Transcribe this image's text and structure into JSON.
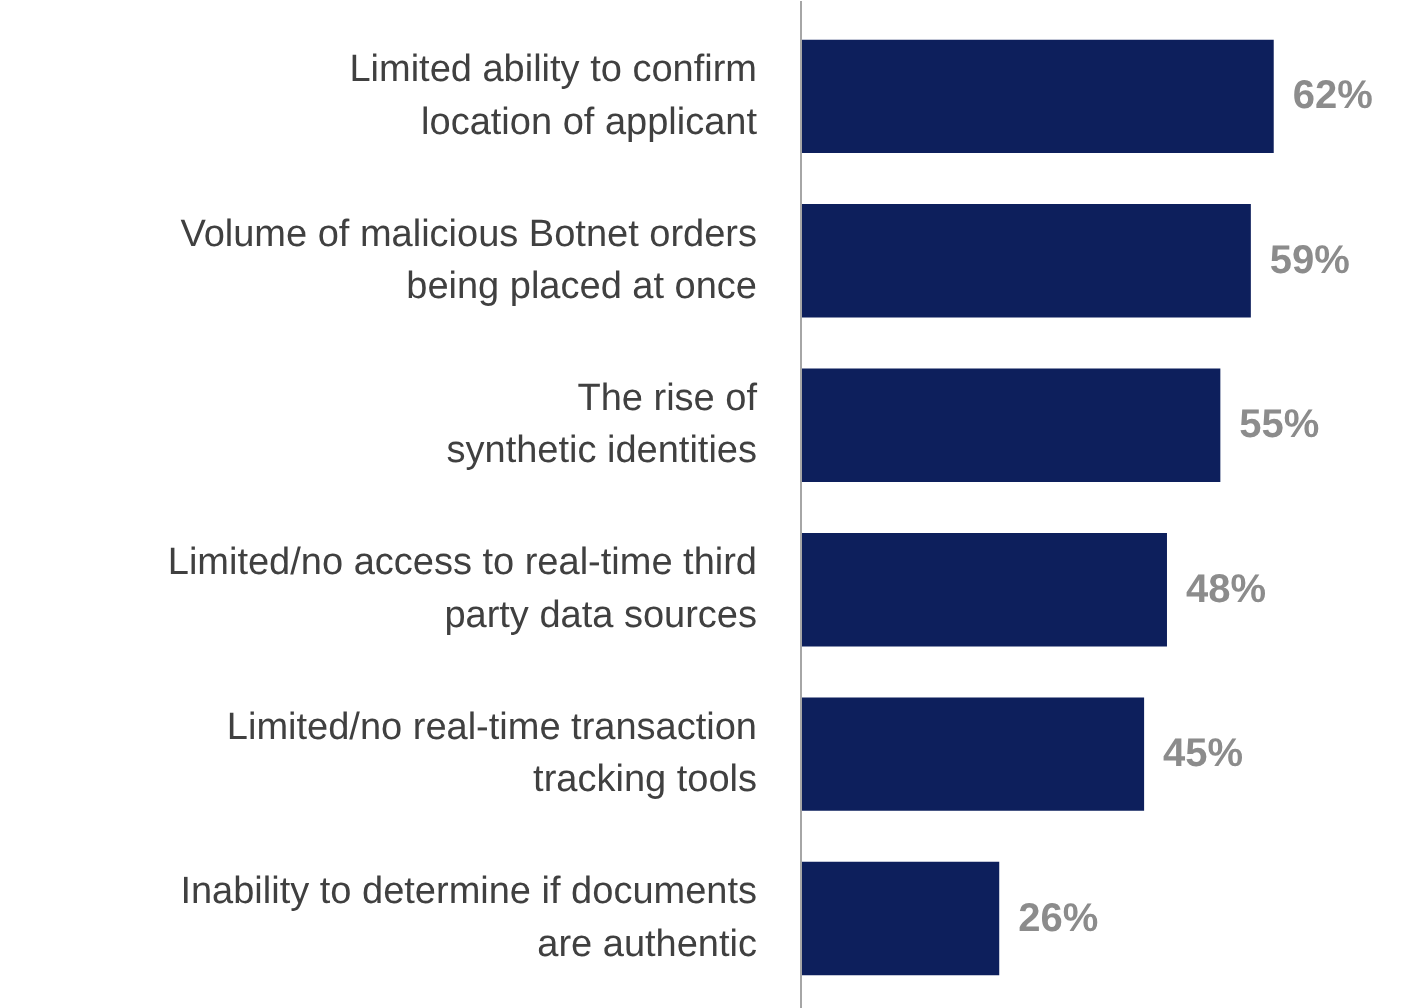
{
  "chart_data": {
    "type": "bar",
    "orientation": "horizontal",
    "categories": [
      "Limited ability to confirm\nlocation of applicant",
      "Volume of malicious Botnet orders\nbeing placed at once",
      "The rise of\nsynthetic identities",
      "Limited/no access to real-time third\nparty data sources",
      "Limited/no real-time transaction\ntracking tools",
      "Inability to determine if documents\nare authentic"
    ],
    "values": [
      62,
      59,
      55,
      48,
      45,
      26
    ],
    "value_labels": [
      "62%",
      "59%",
      "55%",
      "48%",
      "45%",
      "26%"
    ],
    "color": "#0d1f5c",
    "grid": false,
    "tick_labels": "y"
  }
}
